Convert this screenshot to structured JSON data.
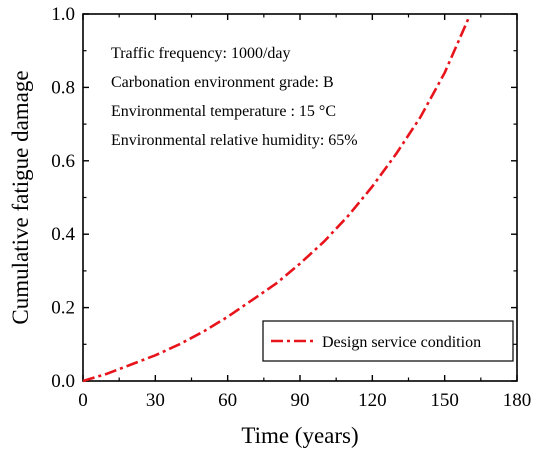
{
  "chart_data": {
    "type": "line",
    "xlabel": "Time (years)",
    "ylabel": "Cumulative fatigue damage",
    "xlim": [
      0,
      180
    ],
    "ylim": [
      0,
      1.0
    ],
    "xticks": [
      "0",
      "30",
      "60",
      "90",
      "120",
      "150",
      "180"
    ],
    "yticks": [
      "0.0",
      "0.2",
      "0.4",
      "0.6",
      "0.8",
      "1.0"
    ],
    "xtick_values": [
      0,
      30,
      60,
      90,
      120,
      150,
      180
    ],
    "ytick_values": [
      0,
      0.2,
      0.4,
      0.6,
      0.8,
      1.0
    ],
    "grid": false,
    "legend_position": "bottom-right",
    "annotations": [
      "Traffic frequency: 1000/day",
      "Carbonation environment grade: B",
      "Environmental temperature : 15 °C",
      "Environmental relative humidity: 65%"
    ],
    "series": [
      {
        "name": "Design service condition",
        "color": "#e8141c",
        "line_style": "dash-dot",
        "x": [
          0,
          10,
          20,
          30,
          40,
          50,
          60,
          70,
          80,
          90,
          100,
          110,
          120,
          130,
          140,
          150,
          160
        ],
        "y": [
          0.0,
          0.02,
          0.045,
          0.07,
          0.1,
          0.135,
          0.175,
          0.22,
          0.265,
          0.32,
          0.38,
          0.45,
          0.53,
          0.62,
          0.72,
          0.84,
          0.99
        ]
      }
    ]
  }
}
